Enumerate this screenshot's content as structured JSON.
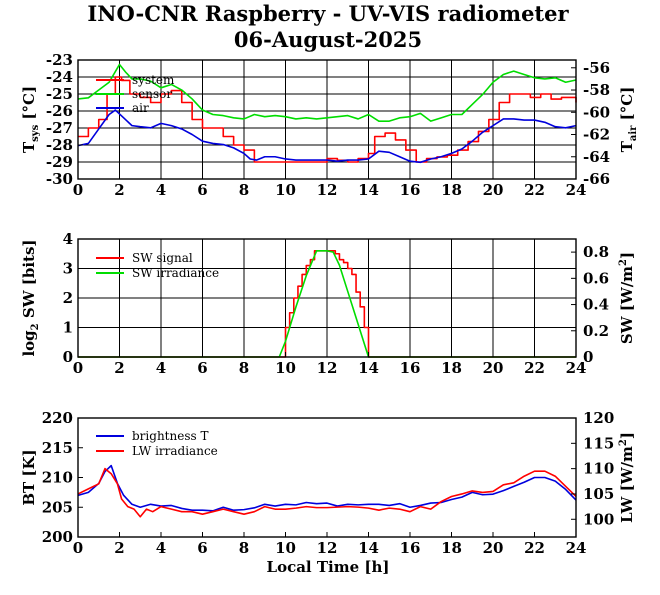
{
  "title": "INO-CNR Raspberry - UV-VIS radiometer",
  "subtitle": "06-August-2025",
  "xlabel": "Local Time [h]",
  "colors": {
    "red": "#ff0000",
    "green": "#00dd00",
    "blue": "#0000dd"
  },
  "chart_data": [
    {
      "type": "line",
      "xlim": [
        0,
        24
      ],
      "xticks": [
        "0",
        "2",
        "4",
        "6",
        "8",
        "10",
        "12",
        "14",
        "16",
        "18",
        "20",
        "22",
        "24"
      ],
      "ylabel_left": "T",
      "ylabel_left_sub": "sys",
      "ylabel_left_unit": "[°C]",
      "ylim_left": [
        -30,
        -23
      ],
      "yticks_left": [
        "-23",
        "-24",
        "-25",
        "-26",
        "-27",
        "-28",
        "-29",
        "-30"
      ],
      "ylabel_right": "T",
      "ylabel_right_sub": "air",
      "ylabel_right_unit": "[°C]",
      "ylim_right": [
        -66,
        -55.3
      ],
      "yticks_right": [
        "-56",
        "-58",
        "-60",
        "-62",
        "-64",
        "-66"
      ],
      "grid": true,
      "legend_position": "top-left",
      "series": [
        {
          "name": "system",
          "color": "#ff0000",
          "axis": "left",
          "step": true,
          "x": [
            0,
            0.5,
            1,
            1.4,
            1.8,
            2.1,
            2.5,
            3,
            3.5,
            4,
            4.5,
            5,
            5.5,
            6,
            6.5,
            7,
            7.5,
            8,
            8.5,
            9,
            9.5,
            10,
            10.5,
            11,
            11.5,
            12,
            12.5,
            13,
            13.5,
            14,
            14.3,
            14.8,
            15.3,
            15.8,
            16.3,
            16.8,
            17.3,
            17.8,
            18.3,
            18.8,
            19.3,
            19.8,
            20.3,
            20.8,
            21.3,
            21.8,
            22.3,
            22.8,
            23.3,
            24
          ],
          "y": [
            -27.5,
            -27,
            -26.5,
            -25,
            -24,
            -24.2,
            -25,
            -25.2,
            -25.5,
            -25,
            -24.8,
            -25.5,
            -26.5,
            -27,
            -27,
            -27.5,
            -28,
            -28.3,
            -29,
            -29,
            -29,
            -29,
            -29,
            -29,
            -29,
            -28.8,
            -28.9,
            -29,
            -28.8,
            -28.5,
            -27.5,
            -27.3,
            -27.7,
            -28.3,
            -29,
            -28.8,
            -28.7,
            -28.6,
            -28.3,
            -27.8,
            -27.2,
            -26.5,
            -25.5,
            -25,
            -25,
            -25.2,
            -25,
            -25.3,
            -25.2,
            -25.5
          ]
        },
        {
          "name": "sensor",
          "color": "#00dd00",
          "axis": "right",
          "x": [
            0,
            0.5,
            1,
            1.5,
            2,
            2.3,
            2.6,
            3,
            3.5,
            4,
            4.5,
            5,
            5.5,
            6,
            6.5,
            7,
            7.5,
            8,
            8.5,
            9,
            9.5,
            10,
            10.5,
            11,
            11.5,
            12,
            12.5,
            13,
            13.5,
            14,
            14.5,
            15,
            15.5,
            16,
            16.5,
            17,
            17.5,
            18,
            18.5,
            19,
            19.5,
            20,
            20.5,
            21,
            21.5,
            22,
            22.5,
            23,
            23.5,
            24
          ],
          "y": [
            -58.8,
            -58.7,
            -58,
            -57.3,
            -55.7,
            -56.4,
            -57,
            -57,
            -57.2,
            -57.8,
            -57.5,
            -58,
            -58.8,
            -59.8,
            -60.2,
            -60.3,
            -60.5,
            -60.6,
            -60.2,
            -60.4,
            -60.3,
            -60.4,
            -60.6,
            -60.5,
            -60.6,
            -60.5,
            -60.4,
            -60.3,
            -60.6,
            -60.2,
            -60.8,
            -60.8,
            -60.5,
            -60.4,
            -60.1,
            -60.8,
            -60.5,
            -60.2,
            -60.2,
            -59.3,
            -58.4,
            -57.3,
            -56.6,
            -56.3,
            -56.6,
            -56.9,
            -57,
            -56.9,
            -57.3,
            -57.1
          ]
        },
        {
          "name": "air",
          "color": "#0000dd",
          "axis": "right",
          "x": [
            0,
            0.5,
            1,
            1.5,
            1.8,
            2.2,
            2.6,
            3,
            3.5,
            4,
            4.5,
            5,
            5.5,
            6,
            6.5,
            7,
            7.5,
            8,
            8.3,
            8.6,
            9,
            9.5,
            10,
            10.5,
            11,
            11.5,
            12,
            12.5,
            13,
            13.5,
            14,
            14.5,
            15,
            15.5,
            16,
            16.5,
            17,
            17.5,
            18,
            18.5,
            19,
            19.5,
            20,
            20.5,
            21,
            21.5,
            22,
            22.5,
            23,
            23.5,
            24
          ],
          "y": [
            -63,
            -62.8,
            -61.5,
            -60.2,
            -59.8,
            -60.5,
            -61.2,
            -61.3,
            -61.4,
            -61,
            -61.2,
            -61.5,
            -62,
            -62.6,
            -62.8,
            -62.9,
            -63.2,
            -63.7,
            -64.2,
            -64.3,
            -64,
            -64,
            -64.2,
            -64.3,
            -64.3,
            -64.3,
            -64.3,
            -64.4,
            -64.3,
            -64.3,
            -64.2,
            -63.5,
            -63.6,
            -64,
            -64.4,
            -64.5,
            -64.2,
            -64,
            -63.7,
            -63.3,
            -62.6,
            -61.8,
            -61.2,
            -60.6,
            -60.6,
            -60.7,
            -60.7,
            -60.9,
            -61.3,
            -61.4,
            -61.2
          ]
        }
      ]
    },
    {
      "type": "line",
      "xlim": [
        0,
        24
      ],
      "xticks": [
        "0",
        "2",
        "4",
        "6",
        "8",
        "10",
        "12",
        "14",
        "16",
        "18",
        "20",
        "22",
        "24"
      ],
      "ylabel_left": "log",
      "ylabel_left_sub": "2",
      "ylabel_left_unit": "SW [bits]",
      "ylim_left": [
        0,
        4
      ],
      "yticks_left": [
        "0",
        "1",
        "2",
        "3",
        "4"
      ],
      "ylabel_right": "SW [W/m",
      "ylabel_right_sup": "2",
      "ylabel_right_unit": "]",
      "ylim_right": [
        0,
        0.9
      ],
      "yticks_right": [
        "0",
        "0.2",
        "0.4",
        "0.6",
        "0.8"
      ],
      "grid": true,
      "legend_position": "top-left",
      "series": [
        {
          "name": "SW signal",
          "color": "#ff0000",
          "axis": "left",
          "step": true,
          "x": [
            0,
            9.7,
            10.0,
            10.2,
            10.4,
            10.6,
            10.8,
            11.0,
            11.2,
            11.4,
            12.4,
            12.6,
            12.8,
            13.0,
            13.2,
            13.4,
            13.6,
            13.8,
            14.0,
            24
          ],
          "y": [
            0,
            0,
            1,
            1.5,
            2,
            2.4,
            2.8,
            3.1,
            3.3,
            3.6,
            3.5,
            3.3,
            3.2,
            3.0,
            2.8,
            2.2,
            1.7,
            1.0,
            0,
            0
          ]
        },
        {
          "name": "SW irradiance",
          "color": "#00dd00",
          "axis": "right",
          "x": [
            0,
            9.7,
            10.0,
            10.5,
            11.0,
            11.5,
            12.0,
            12.3,
            12.6,
            13.0,
            13.4,
            13.8,
            14.0,
            24
          ],
          "y": [
            0,
            0,
            0.12,
            0.38,
            0.62,
            0.81,
            0.81,
            0.8,
            0.7,
            0.5,
            0.3,
            0.1,
            0,
            0
          ]
        }
      ]
    },
    {
      "type": "line",
      "xlim": [
        0,
        24
      ],
      "xticks": [
        "0",
        "2",
        "4",
        "6",
        "8",
        "10",
        "12",
        "14",
        "16",
        "18",
        "20",
        "22",
        "24"
      ],
      "ylabel_left": "BT [K]",
      "ylim_left": [
        200,
        220
      ],
      "yticks_left": [
        "200",
        "205",
        "210",
        "215",
        "220"
      ],
      "ylabel_right": "LW [W/m",
      "ylabel_right_sup": "2",
      "ylabel_right_unit": "]",
      "ylim_right": [
        96.5,
        120
      ],
      "yticks_right": [
        "100",
        "105",
        "110",
        "115",
        "120"
      ],
      "grid": false,
      "legend_position": "top-left",
      "series": [
        {
          "name": "brightness T",
          "color": "#0000dd",
          "axis": "left",
          "x": [
            0,
            0.5,
            1,
            1.3,
            1.6,
            1.9,
            2.2,
            2.6,
            3,
            3.5,
            4,
            4.5,
            5,
            5.5,
            6,
            6.5,
            7,
            7.5,
            8,
            8.5,
            9,
            9.5,
            10,
            10.5,
            11,
            11.5,
            12,
            12.5,
            13,
            13.5,
            14,
            14.5,
            15,
            15.5,
            16,
            16.5,
            17,
            17.5,
            18,
            18.5,
            19,
            19.5,
            20,
            20.5,
            21,
            21.5,
            22,
            22.5,
            23,
            23.5,
            24
          ],
          "y": [
            207,
            207.5,
            209,
            211,
            212,
            209,
            207,
            205.5,
            205,
            205.5,
            205.2,
            205.3,
            204.8,
            204.5,
            204.5,
            204.4,
            205,
            204.5,
            204.6,
            204.9,
            205.5,
            205.2,
            205.5,
            205.4,
            205.8,
            205.6,
            205.7,
            205.2,
            205.5,
            205.4,
            205.5,
            205.5,
            205.3,
            205.6,
            205,
            205.3,
            205.7,
            205.8,
            206.3,
            206.7,
            207.5,
            207.1,
            207.2,
            207.8,
            208.5,
            209.2,
            210,
            210,
            209.4,
            208,
            206.2
          ]
        },
        {
          "name": "LW irradiance",
          "color": "#ff0000",
          "axis": "right",
          "x": [
            0,
            0.5,
            1,
            1.3,
            1.6,
            1.9,
            2.1,
            2.4,
            2.7,
            3,
            3.3,
            3.6,
            4,
            4.5,
            5,
            5.5,
            6,
            6.5,
            7,
            7.5,
            8,
            8.5,
            9,
            9.5,
            10,
            10.5,
            11,
            11.5,
            12,
            12.5,
            13,
            13.5,
            14,
            14.5,
            15,
            15.5,
            16,
            16.5,
            17,
            17.5,
            18,
            18.5,
            19,
            19.5,
            20,
            20.5,
            21,
            21.5,
            22,
            22.5,
            23,
            23.5,
            24
          ],
          "y": [
            105,
            106,
            107,
            110,
            109,
            107,
            104,
            102.5,
            102,
            100.5,
            102,
            101.5,
            102.5,
            102,
            101.5,
            101.5,
            101,
            101.5,
            102,
            101.5,
            101,
            101.5,
            102.5,
            102,
            102,
            102.2,
            102.5,
            102.3,
            102.3,
            102.4,
            102.5,
            102.4,
            102.2,
            101.8,
            102.2,
            102,
            101.5,
            102.5,
            102,
            103.5,
            104.5,
            105,
            105.6,
            105.3,
            105.5,
            106.8,
            107.2,
            108.5,
            109.5,
            109.5,
            108.5,
            106.5,
            104.5
          ]
        }
      ]
    }
  ]
}
